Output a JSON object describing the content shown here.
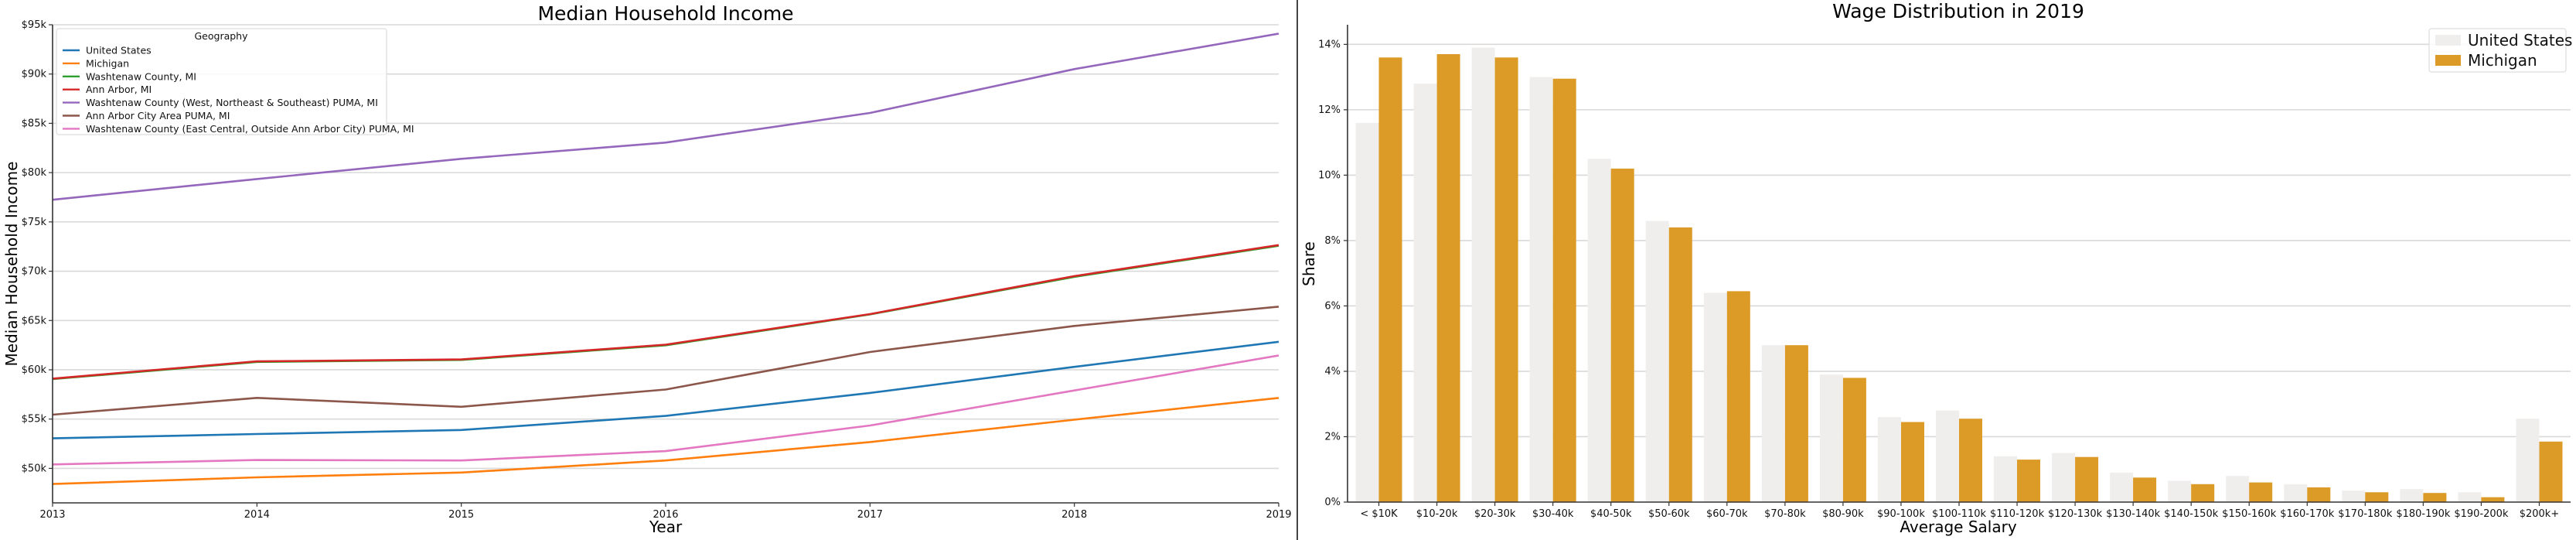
{
  "chart_data": [
    {
      "type": "line",
      "title": "Median Household Income",
      "xlabel": "Year",
      "ylabel": "Median Household Income",
      "x": [
        2013,
        2014,
        2015,
        2016,
        2017,
        2018,
        2019
      ],
      "x_tick_labels": [
        "2013",
        "2014",
        "2015",
        "2016",
        "2017",
        "2018",
        "2019"
      ],
      "ylim": [
        46500,
        95000
      ],
      "y_ticks": [
        50000,
        55000,
        60000,
        65000,
        70000,
        75000,
        80000,
        85000,
        90000,
        95000
      ],
      "y_tick_labels": [
        "$50k",
        "$55k",
        "$60k",
        "$65k",
        "$70k",
        "$75k",
        "$80k",
        "$85k",
        "$90k",
        "$95k"
      ],
      "grid": true,
      "legend": {
        "title": "Geography",
        "placement": "top-left"
      },
      "series": [
        {
          "name": "United States",
          "color": "#1f77b4",
          "values": [
            53046,
            53482,
            53889,
            55322,
            57652,
            60293,
            62843
          ]
        },
        {
          "name": "Michigan",
          "color": "#ff7f0e",
          "values": [
            48411,
            49087,
            49576,
            50803,
            52668,
            54938,
            57144
          ]
        },
        {
          "name": "Washtenaw County, MI",
          "color": "#2ca02c",
          "values": [
            59055,
            60795,
            61003,
            62484,
            65618,
            69434,
            72586
          ]
        },
        {
          "name": "Ann Arbor, MI",
          "color": "#d62728",
          "values": [
            59100,
            60850,
            61050,
            62550,
            65650,
            69500,
            72650
          ]
        },
        {
          "name": "Washtenaw County (West, Northeast & Southeast) PUMA, MI",
          "color": "#9467bd",
          "values": [
            77250,
            79350,
            81400,
            83050,
            86050,
            90500,
            94100
          ]
        },
        {
          "name": "Ann Arbor City Area PUMA, MI",
          "color": "#8c564b",
          "values": [
            55450,
            57150,
            56250,
            58000,
            61800,
            64450,
            66400
          ]
        },
        {
          "name": "Washtenaw County (East Central, Outside Ann Arbor City) PUMA, MI",
          "color": "#e377c2",
          "values": [
            50400,
            50850,
            50800,
            51750,
            54350,
            57900,
            61450
          ]
        }
      ]
    },
    {
      "type": "bar",
      "title": "Wage Distribution in 2019",
      "xlabel": "Average Salary",
      "ylabel": "Share",
      "categories": [
        "< $10K",
        "$10-20k",
        "$20-30k",
        "$30-40k",
        "$40-50k",
        "$50-60k",
        "$60-70k",
        "$70-80k",
        "$80-90k",
        "$90-100k",
        "$100-110k",
        "$110-120k",
        "$120-130k",
        "$130-140k",
        "$140-150k",
        "$150-160k",
        "$160-170k",
        "$170-180k",
        "$180-190k",
        "$190-200k",
        "$200k+"
      ],
      "ylim": [
        0,
        14.6
      ],
      "y_ticks": [
        0,
        2,
        4,
        6,
        8,
        10,
        12,
        14
      ],
      "y_tick_labels": [
        "0%",
        "2%",
        "4%",
        "6%",
        "8%",
        "10%",
        "12%",
        "14%"
      ],
      "grid": true,
      "legend": {
        "placement": "top-right"
      },
      "series": [
        {
          "name": "United States",
          "color": "#f0eeec",
          "values": [
            11.6,
            12.8,
            13.9,
            13.0,
            10.5,
            8.6,
            6.4,
            4.8,
            3.9,
            2.6,
            2.8,
            1.4,
            1.5,
            0.9,
            0.65,
            0.8,
            0.55,
            0.35,
            0.4,
            0.3,
            2.55
          ]
        },
        {
          "name": "Michigan",
          "color": "#dc9b26",
          "values": [
            13.6,
            13.7,
            13.6,
            12.95,
            10.2,
            8.4,
            6.45,
            4.8,
            3.8,
            2.45,
            2.55,
            1.3,
            1.38,
            0.75,
            0.55,
            0.6,
            0.45,
            0.3,
            0.28,
            0.15,
            1.85
          ]
        }
      ]
    }
  ]
}
